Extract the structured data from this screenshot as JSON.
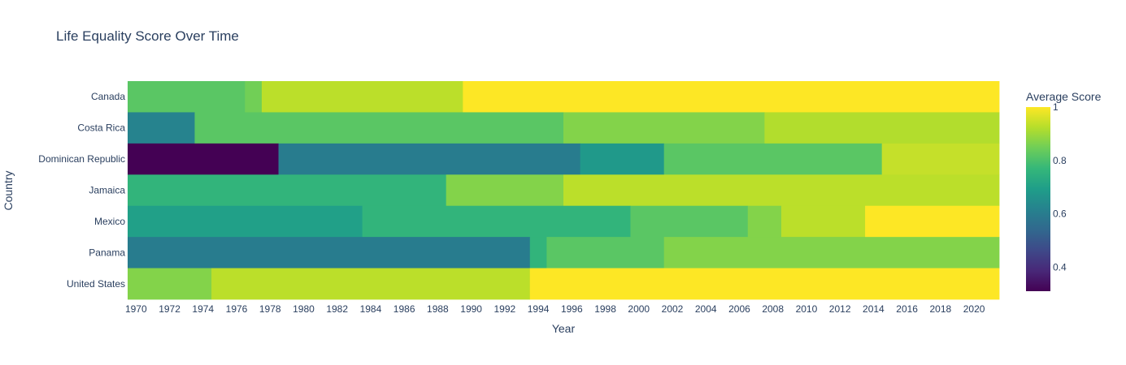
{
  "chart_data": {
    "type": "heatmap",
    "title": "Life Equality Score Over Time",
    "xlabel": "Year",
    "ylabel": "Country",
    "colorbar_title": "Average Score",
    "colorscale": "viridis",
    "zlim": [
      0.31,
      1.0
    ],
    "colorbar_ticks": [
      0.4,
      0.6,
      0.8,
      1
    ],
    "x_range": [
      1970,
      2021
    ],
    "x_ticks": [
      1970,
      1972,
      1974,
      1976,
      1978,
      1980,
      1982,
      1984,
      1986,
      1988,
      1990,
      1992,
      1994,
      1996,
      1998,
      2000,
      2002,
      2004,
      2006,
      2008,
      2010,
      2012,
      2014,
      2016,
      2018,
      2020
    ],
    "categories": [
      "Canada",
      "Costa Rica",
      "Dominican Republic",
      "Jamaica",
      "Mexico",
      "Panama",
      "United States"
    ],
    "segments": [
      {
        "country": "Canada",
        "runs": [
          {
            "from": 1970,
            "to": 1976,
            "value": 0.82
          },
          {
            "from": 1977,
            "to": 1977,
            "value": 0.85
          },
          {
            "from": 1978,
            "to": 1989,
            "value": 0.93
          },
          {
            "from": 1990,
            "to": 2021,
            "value": 1.0
          }
        ]
      },
      {
        "country": "Costa Rica",
        "runs": [
          {
            "from": 1970,
            "to": 1973,
            "value": 0.62
          },
          {
            "from": 1974,
            "to": 1995,
            "value": 0.82
          },
          {
            "from": 1996,
            "to": 2007,
            "value": 0.87
          },
          {
            "from": 2008,
            "to": 2021,
            "value": 0.92
          }
        ]
      },
      {
        "country": "Dominican Republic",
        "runs": [
          {
            "from": 1970,
            "to": 1978,
            "value": 0.31
          },
          {
            "from": 1979,
            "to": 1996,
            "value": 0.6
          },
          {
            "from": 1997,
            "to": 2001,
            "value": 0.68
          },
          {
            "from": 2002,
            "to": 2014,
            "value": 0.82
          },
          {
            "from": 2015,
            "to": 2021,
            "value": 0.94
          }
        ]
      },
      {
        "country": "Jamaica",
        "runs": [
          {
            "from": 1970,
            "to": 1988,
            "value": 0.76
          },
          {
            "from": 1989,
            "to": 1995,
            "value": 0.87
          },
          {
            "from": 1996,
            "to": 2021,
            "value": 0.93
          }
        ]
      },
      {
        "country": "Mexico",
        "runs": [
          {
            "from": 1970,
            "to": 1983,
            "value": 0.7
          },
          {
            "from": 1984,
            "to": 1999,
            "value": 0.76
          },
          {
            "from": 2000,
            "to": 2006,
            "value": 0.82
          },
          {
            "from": 2007,
            "to": 2008,
            "value": 0.87
          },
          {
            "from": 2009,
            "to": 2013,
            "value": 0.93
          },
          {
            "from": 2014,
            "to": 2021,
            "value": 1.0
          }
        ]
      },
      {
        "country": "Panama",
        "runs": [
          {
            "from": 1970,
            "to": 1993,
            "value": 0.6
          },
          {
            "from": 1994,
            "to": 1994,
            "value": 0.76
          },
          {
            "from": 1995,
            "to": 2001,
            "value": 0.82
          },
          {
            "from": 2002,
            "to": 2021,
            "value": 0.87
          }
        ]
      },
      {
        "country": "United States",
        "runs": [
          {
            "from": 1970,
            "to": 1974,
            "value": 0.87
          },
          {
            "from": 1975,
            "to": 1993,
            "value": 0.93
          },
          {
            "from": 1994,
            "to": 2021,
            "value": 1.0
          }
        ]
      }
    ]
  }
}
